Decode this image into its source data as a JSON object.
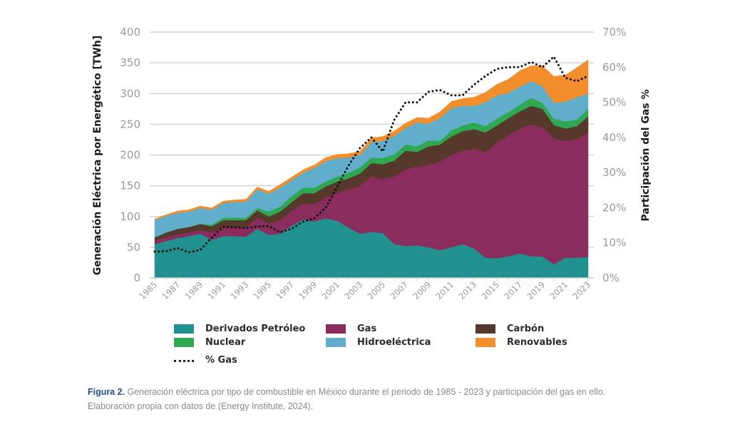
{
  "chart_data": {
    "type": "area",
    "stacked": true,
    "title": "",
    "x": [
      1985,
      1986,
      1987,
      1988,
      1989,
      1990,
      1991,
      1992,
      1993,
      1994,
      1995,
      1996,
      1997,
      1998,
      1999,
      2000,
      2001,
      2002,
      2003,
      2004,
      2005,
      2006,
      2007,
      2008,
      2009,
      2010,
      2011,
      2012,
      2013,
      2014,
      2015,
      2016,
      2017,
      2018,
      2019,
      2020,
      2021,
      2022,
      2023
    ],
    "x_tick_labels": [
      "1985",
      "1987",
      "1989",
      "1991",
      "1993",
      "1995",
      "1997",
      "1999",
      "2001",
      "2003",
      "2005",
      "2007",
      "2009",
      "2011",
      "2013",
      "2015",
      "2017",
      "2019",
      "2021",
      "2023"
    ],
    "ylabel": "Generación Eléctrica por Energético [TWh]",
    "ylim": [
      0,
      400
    ],
    "y_ticks": [
      0,
      50,
      100,
      150,
      200,
      250,
      300,
      350,
      400
    ],
    "y2label": "Participación del Gas %",
    "y2lim": [
      0,
      70
    ],
    "y2_ticks": [
      "0%",
      "10%",
      "20%",
      "30%",
      "40%",
      "50%",
      "60%",
      "70%"
    ],
    "grid": true,
    "legend_position": "bottom",
    "series": [
      {
        "name": "Derivados Petróleo",
        "color": "#21918f",
        "values": [
          55,
          60,
          65,
          68,
          72,
          62,
          68,
          68,
          67,
          80,
          70,
          72,
          85,
          95,
          92,
          97,
          93,
          82,
          72,
          75,
          73,
          55,
          52,
          53,
          50,
          45,
          50,
          55,
          48,
          33,
          32,
          35,
          40,
          35,
          35,
          22,
          33,
          33,
          34
        ]
      },
      {
        "name": "Gas",
        "color": "#8a2d5e",
        "values": [
          6,
          6,
          6,
          6,
          6,
          12,
          14,
          14,
          15,
          18,
          18,
          22,
          24,
          26,
          28,
          34,
          46,
          62,
          78,
          90,
          88,
          110,
          125,
          128,
          134,
          144,
          150,
          152,
          162,
          172,
          188,
          197,
          203,
          215,
          210,
          205,
          190,
          192,
          203
        ]
      },
      {
        "name": "Carbón",
        "color": "#56392b",
        "values": [
          5,
          8,
          9,
          9,
          10,
          10,
          12,
          12,
          12,
          12,
          12,
          14,
          14,
          17,
          18,
          18,
          18,
          18,
          20,
          22,
          24,
          26,
          30,
          24,
          30,
          28,
          30,
          32,
          32,
          32,
          28,
          28,
          28,
          30,
          30,
          22,
          20,
          22,
          26
        ]
      },
      {
        "name": "Nuclear",
        "color": "#2fa852",
        "values": [
          0,
          0,
          0,
          0,
          0,
          3,
          4,
          4,
          4,
          4,
          8,
          8,
          10,
          9,
          9,
          8,
          8,
          9,
          10,
          9,
          10,
          10,
          10,
          9,
          10,
          6,
          10,
          9,
          11,
          10,
          11,
          10,
          11,
          13,
          10,
          10,
          12,
          10,
          12
        ]
      },
      {
        "name": "Hidroeléctrica",
        "color": "#60aecc",
        "values": [
          28,
          27,
          26,
          25,
          26,
          24,
          24,
          26,
          26,
          30,
          29,
          31,
          26,
          24,
          32,
          33,
          30,
          25,
          20,
          25,
          28,
          30,
          27,
          39,
          27,
          37,
          36,
          32,
          27,
          39,
          38,
          31,
          29,
          27,
          27,
          26,
          32,
          37,
          25
        ]
      },
      {
        "name": "Renovables",
        "color": "#f28e2b",
        "values": [
          2,
          2,
          3,
          3,
          3,
          3,
          3,
          3,
          4,
          4,
          4,
          5,
          5,
          5,
          5,
          6,
          6,
          6,
          6,
          7,
          7,
          8,
          8,
          8,
          9,
          10,
          11,
          12,
          14,
          16,
          18,
          22,
          26,
          25,
          33,
          43,
          43,
          48,
          55
        ]
      }
    ],
    "line_series": {
      "name": "% Gas",
      "axis": "right",
      "style": "dotted",
      "color": "#111111",
      "values": [
        7.5,
        7.6,
        8.5,
        7.3,
        8.0,
        11.5,
        14.5,
        14.4,
        14.2,
        14.6,
        14.8,
        13.0,
        14.0,
        16.0,
        17.0,
        20.0,
        26.0,
        32.0,
        37.0,
        40.0,
        36.0,
        45.0,
        50.0,
        50.0,
        53.0,
        53.5,
        52.0,
        52.0,
        55.0,
        57.5,
        59.5,
        60.0,
        60.0,
        61.5,
        60.0,
        63.0,
        57.0,
        56.0,
        57.5
      ]
    }
  },
  "legend": {
    "items": [
      {
        "label": "Derivados Petróleo",
        "color": "#21918f"
      },
      {
        "label": "Gas",
        "color": "#8a2d5e"
      },
      {
        "label": "Carbón",
        "color": "#56392b"
      },
      {
        "label": "Nuclear",
        "color": "#2fa852"
      },
      {
        "label": "Hidroeléctrica",
        "color": "#60aecc"
      },
      {
        "label": "Renovables",
        "color": "#f28e2b"
      }
    ],
    "line_label": "% Gas"
  },
  "caption": {
    "figure_label": "Figura 2.",
    "line1": " Generación eléctrica por tipo de combustible en México durante el periodo de 1985 - 2023 y participación del gas en ello.",
    "line2": "Elaboración propia con datos de (Energy Institute, 2024)."
  }
}
